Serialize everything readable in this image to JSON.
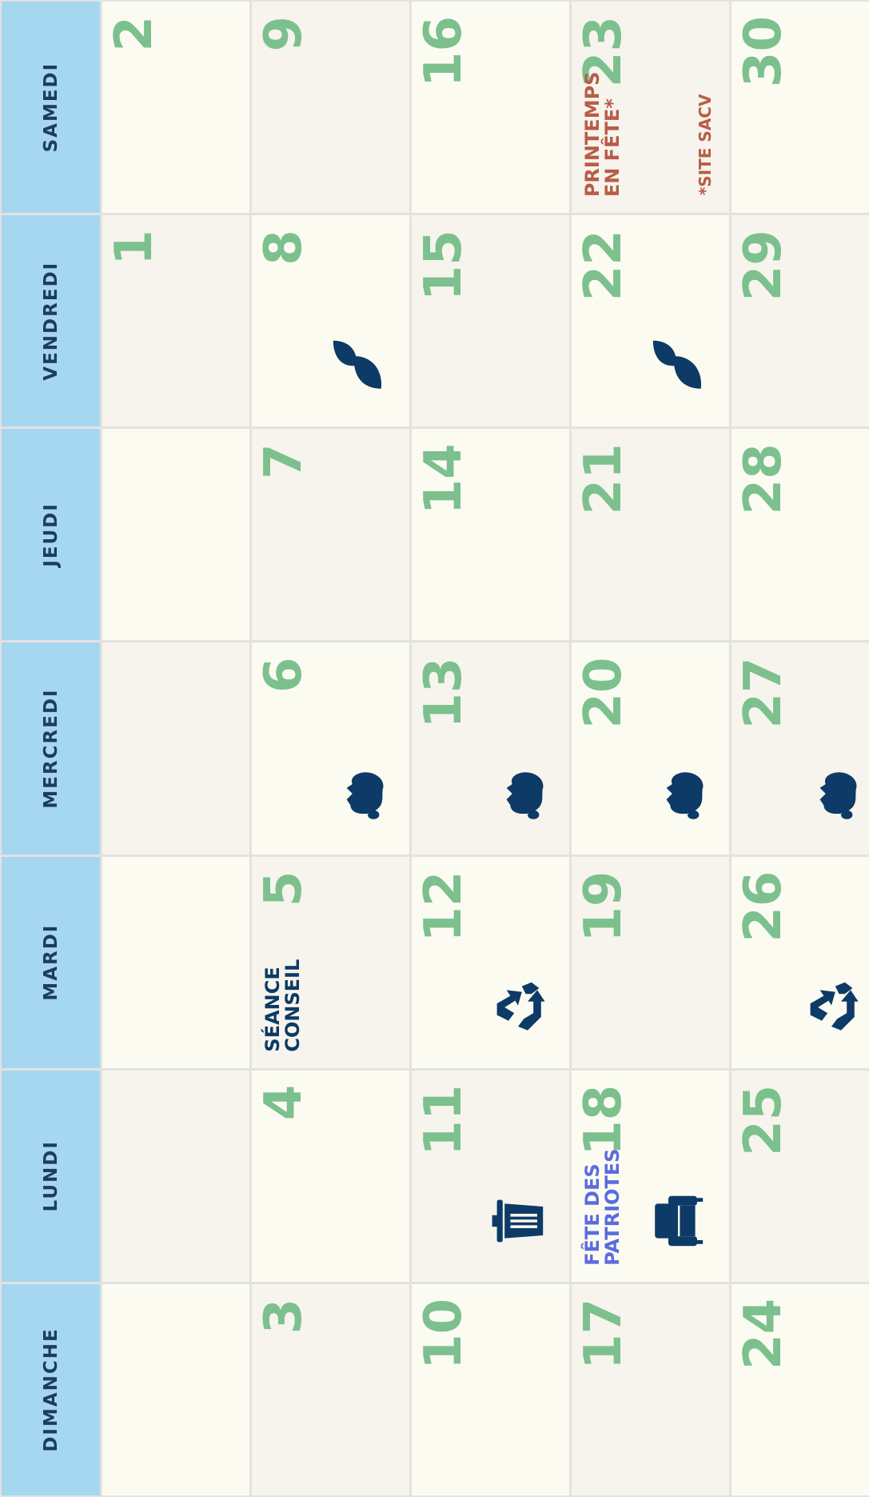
{
  "header": {
    "days": [
      "DIMANCHE",
      "LUNDI",
      "MARDI",
      "MERCREDI",
      "JEUDI",
      "VENDREDI",
      "SAMEDI"
    ]
  },
  "weeks": [
    {
      "cells": [
        {
          "number": null
        },
        {
          "number": null
        },
        {
          "number": null
        },
        {
          "number": null
        },
        {
          "number": null
        },
        {
          "number": 1
        },
        {
          "number": 2
        }
      ]
    },
    {
      "cells": [
        {
          "number": 3
        },
        {
          "number": 4
        },
        {
          "number": 5,
          "events": [
            {
              "lines": [
                "SÉANCE",
                "CONSEIL"
              ],
              "color": "#0d3a66"
            }
          ]
        },
        {
          "number": 6
        },
        {
          "number": 7
        },
        {
          "number": 8
        },
        {
          "number": 9
        }
      ]
    },
    {
      "cells": [
        {
          "number": 10
        },
        {
          "number": 11
        },
        {
          "number": 12
        },
        {
          "number": 13
        },
        {
          "number": 14
        },
        {
          "number": 15
        },
        {
          "number": 16
        }
      ]
    },
    {
      "cells": [
        {
          "number": 17
        },
        {
          "number": 18,
          "events": [
            {
              "lines": [
                "FÊTE DES",
                "PATRIOTES"
              ],
              "color": "#5b6be0"
            }
          ]
        },
        {
          "number": 19
        },
        {
          "number": 20
        },
        {
          "number": 21
        },
        {
          "number": 22
        },
        {
          "number": 23,
          "events": [
            {
              "lines": [
                "PRINTEMPS",
                "EN FÊTE*"
              ],
              "color": "#b85c48"
            }
          ],
          "note": "*SITE SACV"
        }
      ]
    },
    {
      "cells": [
        {
          "number": 24
        },
        {
          "number": 25
        },
        {
          "number": 26
        },
        {
          "number": 27
        },
        {
          "number": 28
        },
        {
          "number": 29
        },
        {
          "number": 30
        }
      ]
    }
  ]
}
